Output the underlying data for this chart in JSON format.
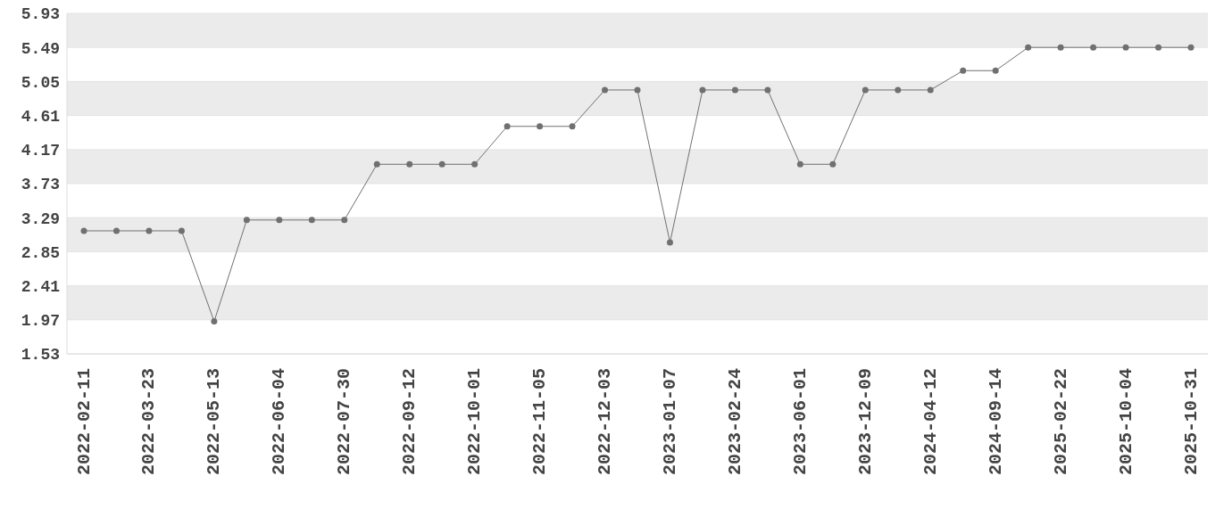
{
  "chart_data": {
    "type": "line",
    "categories": [
      "2022-02-11",
      null,
      "2022-03-23",
      null,
      "2022-05-13",
      null,
      "2022-06-04",
      null,
      "2022-07-30",
      null,
      "2022-09-12",
      null,
      "2022-10-01",
      null,
      "2022-11-05",
      null,
      "2022-12-03",
      null,
      "2023-01-07",
      null,
      "2023-02-24",
      null,
      "2023-06-01",
      null,
      "2023-12-09",
      null,
      "2024-04-12",
      null,
      "2024-09-14",
      null,
      "2025-02-22",
      null,
      "2025-10-04",
      null,
      "2025-10-31"
    ],
    "series": [
      {
        "color": "#707070",
        "values": [
          3.12,
          3.12,
          3.12,
          3.12,
          1.95,
          3.26,
          3.26,
          3.26,
          3.26,
          3.98,
          3.98,
          3.98,
          3.98,
          4.47,
          4.47,
          4.47,
          4.94,
          4.94,
          2.97,
          4.94,
          4.94,
          4.94,
          3.98,
          3.98,
          4.94,
          4.94,
          4.94,
          5.19,
          5.19,
          5.49,
          5.49,
          5.49,
          5.49,
          5.49,
          5.49
        ]
      }
    ],
    "ylim": [
      1.53,
      5.93
    ],
    "yticks": [
      1.53,
      1.97,
      2.41,
      2.85,
      3.29,
      3.73,
      4.17,
      4.61,
      5.05,
      5.49,
      5.93
    ],
    "grid": "y",
    "marker": "circle",
    "line_style": "solid"
  }
}
